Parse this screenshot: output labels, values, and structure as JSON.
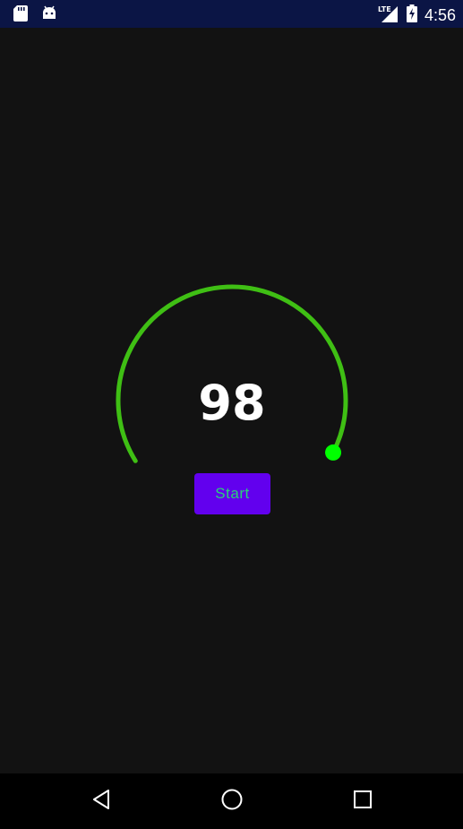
{
  "status_bar": {
    "time": "4:56",
    "network_type": "LTE",
    "left_icons": [
      "sd-card-icon",
      "android-icon"
    ],
    "right_icons": [
      "signal-icon",
      "battery-charging-icon"
    ]
  },
  "gauge": {
    "value": "98",
    "progress": 0.98,
    "arc_color": "#3fbf14",
    "knob_color": "#00ff00"
  },
  "start_button": {
    "label": "Start",
    "background": "#6200ee",
    "text_color": "#29d17a"
  },
  "nav_bar": {
    "buttons": [
      "back-icon",
      "home-icon",
      "recents-icon"
    ]
  }
}
